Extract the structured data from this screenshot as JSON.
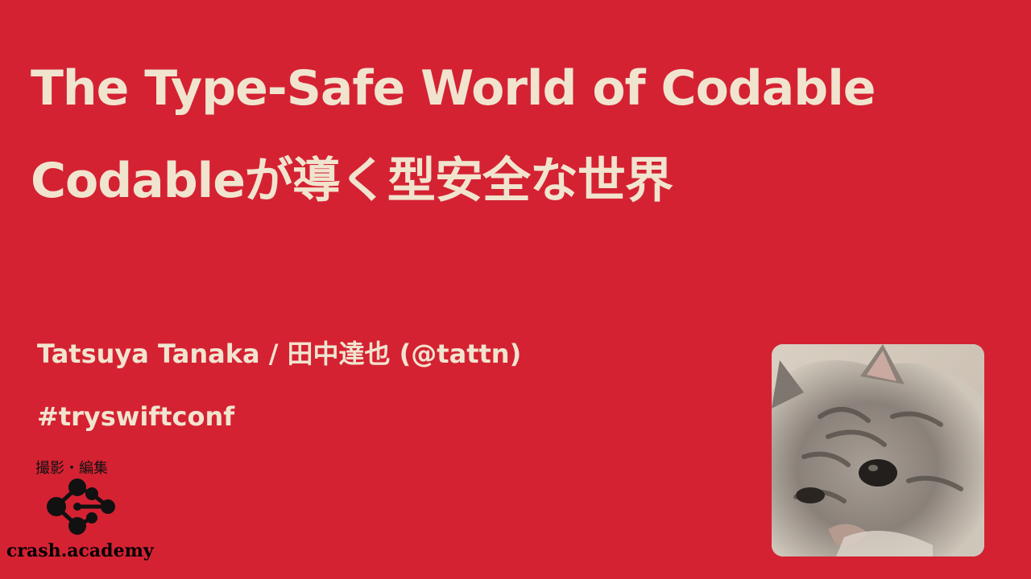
{
  "slide": {
    "title_en": "The Type-Safe World of Codable",
    "title_ja": "Codableが導く型安全な世界",
    "author": "Tatsuya Tanaka / 田中達也 (@tattn)",
    "hashtag": "#tryswiftconf"
  },
  "watermark": {
    "credit": "撮影・編集",
    "brand": "crash.academy",
    "logo_icon": "molecule-logo-icon"
  },
  "speaker_video": {
    "icon": "cat-photo"
  },
  "colors": {
    "background": "#d42233",
    "text": "#f1e4cf",
    "watermark": "#111111"
  }
}
